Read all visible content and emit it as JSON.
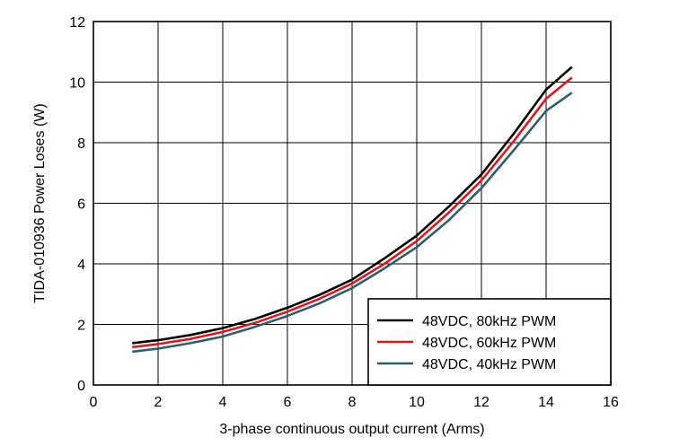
{
  "chart_data": {
    "type": "line",
    "xlabel": "3-phase continuous output current (Arms)",
    "ylabel": "TIDA-010936 Power Loses (W)",
    "xlim": [
      0,
      16
    ],
    "ylim": [
      0,
      12
    ],
    "xticks": [
      0,
      2,
      4,
      6,
      8,
      10,
      12,
      14,
      16
    ],
    "yticks": [
      0,
      2,
      4,
      6,
      8,
      10,
      12
    ],
    "grid": true,
    "legend_position": "bottom-right",
    "series": [
      {
        "name": "48VDC, 80kHz PWM",
        "color": "#000000",
        "x": [
          1.2,
          2,
          3,
          4,
          5,
          6,
          7,
          8,
          9,
          10,
          11,
          12,
          13,
          14,
          14.8
        ],
        "y": [
          1.38,
          1.48,
          1.65,
          1.88,
          2.18,
          2.55,
          2.98,
          3.48,
          4.18,
          4.93,
          5.9,
          6.95,
          8.3,
          9.75,
          10.5
        ]
      },
      {
        "name": "48VDC, 60kHz PWM",
        "color": "#e8131a",
        "x": [
          1.2,
          2,
          3,
          4,
          5,
          6,
          7,
          8,
          9,
          10,
          11,
          12,
          13,
          14,
          14.8
        ],
        "y": [
          1.25,
          1.35,
          1.52,
          1.75,
          2.05,
          2.42,
          2.85,
          3.35,
          4.0,
          4.75,
          5.7,
          6.75,
          8.05,
          9.45,
          10.15
        ]
      },
      {
        "name": "48VDC, 40kHz PWM",
        "color": "#2f5d6e",
        "x": [
          1.2,
          2,
          3,
          4,
          5,
          6,
          7,
          8,
          9,
          10,
          11,
          12,
          13,
          14,
          14.8
        ],
        "y": [
          1.1,
          1.2,
          1.38,
          1.6,
          1.92,
          2.28,
          2.7,
          3.2,
          3.85,
          4.55,
          5.45,
          6.5,
          7.75,
          9.05,
          9.65
        ]
      }
    ]
  }
}
